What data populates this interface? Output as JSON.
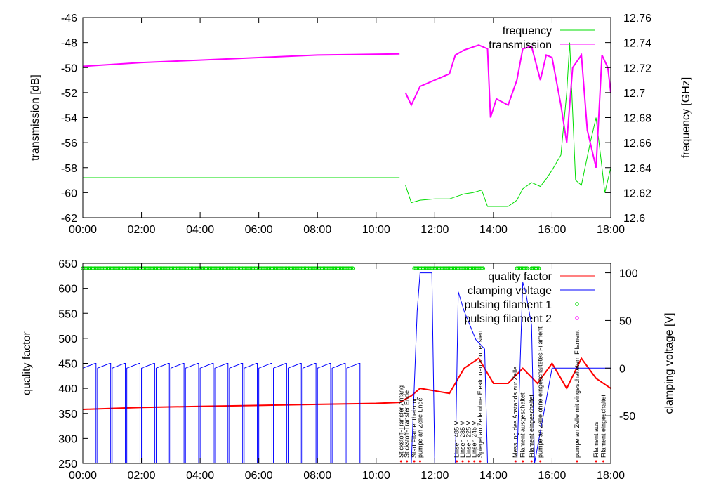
{
  "chart_data": [
    {
      "type": "line",
      "title": "",
      "xlabel": "",
      "ylabel": "transmission [dB]",
      "y2label": "frequency [GHz]",
      "xlim_hours": [
        0,
        18
      ],
      "xticks": [
        "00:00",
        "02:00",
        "04:00",
        "06:00",
        "08:00",
        "10:00",
        "12:00",
        "14:00",
        "16:00",
        "18:00"
      ],
      "ylim": [
        -62,
        -46
      ],
      "yticks": [
        "-62",
        "-60",
        "-58",
        "-56",
        "-54",
        "-52",
        "-50",
        "-48",
        "-46"
      ],
      "y2lim": [
        12.6,
        12.76
      ],
      "y2ticks": [
        "12.6",
        "12.62",
        "12.64",
        "12.66",
        "12.68",
        "12.7",
        "12.72",
        "12.74",
        "12.76"
      ],
      "legend": "top-right",
      "series": [
        {
          "name": "frequency",
          "axis": "y2",
          "color": "#00dd00",
          "x": [
            0,
            2,
            4,
            6,
            8,
            10.8,
            null,
            11,
            11.2,
            11.5,
            12,
            12.5,
            13,
            13.3,
            13.6,
            13.8,
            14.5,
            14.8,
            15,
            15.3,
            15.6,
            15.8,
            16,
            16.3,
            16.5,
            16.6,
            16.8,
            17,
            17.3,
            17.5,
            17.7,
            17.8,
            18
          ],
          "y": [
            12.632,
            12.632,
            12.632,
            12.632,
            12.632,
            12.632,
            null,
            12.626,
            12.612,
            12.614,
            12.615,
            12.615,
            12.619,
            12.62,
            12.622,
            12.609,
            12.609,
            12.614,
            12.623,
            12.628,
            12.625,
            12.631,
            12.638,
            12.65,
            12.7,
            12.74,
            12.63,
            12.626,
            12.66,
            12.68,
            12.64,
            12.62,
            12.64
          ]
        },
        {
          "name": "transmission",
          "axis": "y",
          "color": "#ff00ff",
          "x": [
            0,
            2,
            4,
            6,
            8,
            10.8,
            null,
            11,
            11.2,
            11.5,
            12,
            12.5,
            12.7,
            13,
            13.5,
            13.8,
            13.9,
            14.1,
            14.5,
            14.8,
            15,
            15.3,
            15.6,
            15.8,
            16,
            16.3,
            16.5,
            16.7,
            17,
            17.2,
            17.5,
            17.7,
            17.9,
            18
          ],
          "y": [
            -49.9,
            -49.6,
            -49.4,
            -49.2,
            -49.0,
            -48.9,
            null,
            -52,
            -53,
            -51.5,
            -51,
            -50.5,
            -49,
            -48.6,
            -48.2,
            -48.5,
            -54,
            -52.5,
            -53,
            -51,
            -48.5,
            -48.3,
            -51,
            -49,
            -49.2,
            -53,
            -56,
            -50,
            -49,
            -55,
            -58,
            -49,
            -50,
            -52
          ]
        }
      ]
    },
    {
      "type": "line",
      "ylabel": "quality factor",
      "y2label": "clamping voltage [V]",
      "xlim_hours": [
        0,
        18
      ],
      "xticks": [
        "00:00",
        "02:00",
        "04:00",
        "06:00",
        "08:00",
        "10:00",
        "12:00",
        "14:00",
        "16:00",
        "18:00"
      ],
      "ylim": [
        250,
        650
      ],
      "yticks": [
        "250",
        "300",
        "350",
        "400",
        "450",
        "500",
        "550",
        "600",
        "650"
      ],
      "y2lim": [
        -100,
        110
      ],
      "y2ticks": [
        "-50",
        "0",
        "50",
        "100"
      ],
      "legend": "top-right",
      "series": [
        {
          "name": "quality factor",
          "axis": "y",
          "color": "#ff0000",
          "x": [
            0,
            2,
            4,
            6,
            8,
            10,
            10.8,
            11.2,
            11.5,
            12,
            12.5,
            13,
            13.5,
            14,
            14.5,
            15,
            15.5,
            16,
            16.5,
            17,
            17.5,
            18
          ],
          "y": [
            358,
            362,
            364,
            366,
            368,
            370,
            372,
            385,
            400,
            395,
            390,
            440,
            460,
            410,
            410,
            440,
            410,
            450,
            400,
            460,
            420,
            400
          ]
        },
        {
          "name": "clamping voltage",
          "axis": "y2",
          "color": "#0000ff",
          "sawtooth_start_hours": [
            0,
            0.5,
            1,
            1.5,
            2,
            2.5,
            3,
            3.5,
            4,
            4.5,
            5,
            5.5,
            6,
            6.5,
            7,
            7.5,
            8,
            8.5,
            9
          ],
          "sawtooth_level": [
            0,
            5
          ],
          "x": [
            11.2,
            11.4,
            11.5,
            11.9,
            12.0,
            12.7,
            12.8,
            13.0,
            13.4,
            13.7,
            13.8,
            14.8,
            15.0,
            15.1,
            15.3,
            15.4,
            16.0,
            18
          ],
          "y": [
            -100,
            60,
            100,
            100,
            -100,
            -100,
            80,
            60,
            30,
            20,
            -100,
            -100,
            90,
            80,
            45,
            -100,
            0,
            0
          ]
        },
        {
          "name": "pulsing filament 1",
          "color": "#00dd00",
          "marker": "circle",
          "level": 640,
          "on_ranges_hours": [
            [
              0,
              9.2
            ],
            [
              11.3,
              13.7
            ],
            [
              14.8,
              15.2
            ],
            [
              15.3,
              15.6
            ]
          ]
        },
        {
          "name": "pulsing filament 2",
          "color": "#ff00ff",
          "marker": "circle",
          "on_ranges_hours": []
        }
      ],
      "annotations": [
        {
          "hour": 10.85,
          "text": "Stickstoff-Transfer Anfang"
        },
        {
          "hour": 11.05,
          "text": "Stickstoff-Transfer Ende"
        },
        {
          "hour": 11.3,
          "text": "Start Filamentheizung"
        },
        {
          "hour": 11.5,
          "text": "pumpe an Zelle Ende"
        },
        {
          "hour": 12.75,
          "text": "Linsen 485 V"
        },
        {
          "hour": 12.95,
          "text": "Linsen 285 V"
        },
        {
          "hour": 13.15,
          "text": "Linsen 225 V"
        },
        {
          "hour": 13.35,
          "text": "Linsen 245 V"
        },
        {
          "hour": 13.55,
          "text": "Spiegel an Zelle ohne Elektronen kondensiert"
        },
        {
          "hour": 14.75,
          "text": "Messung des Abstands zur Zelle"
        },
        {
          "hour": 15.0,
          "text": "Filament ausgeschaltet"
        },
        {
          "hour": 15.3,
          "text": "Filament eingeschaltet"
        },
        {
          "hour": 15.6,
          "text": "pumpe an Zelle ohne eingeschaltetes Filament"
        },
        {
          "hour": 16.85,
          "text": "pumpe an Zelle mit eingeschaltetem Filament"
        },
        {
          "hour": 17.5,
          "text": "Filament aus"
        },
        {
          "hour": 17.75,
          "text": "Filament eingeschaltet"
        }
      ]
    }
  ]
}
